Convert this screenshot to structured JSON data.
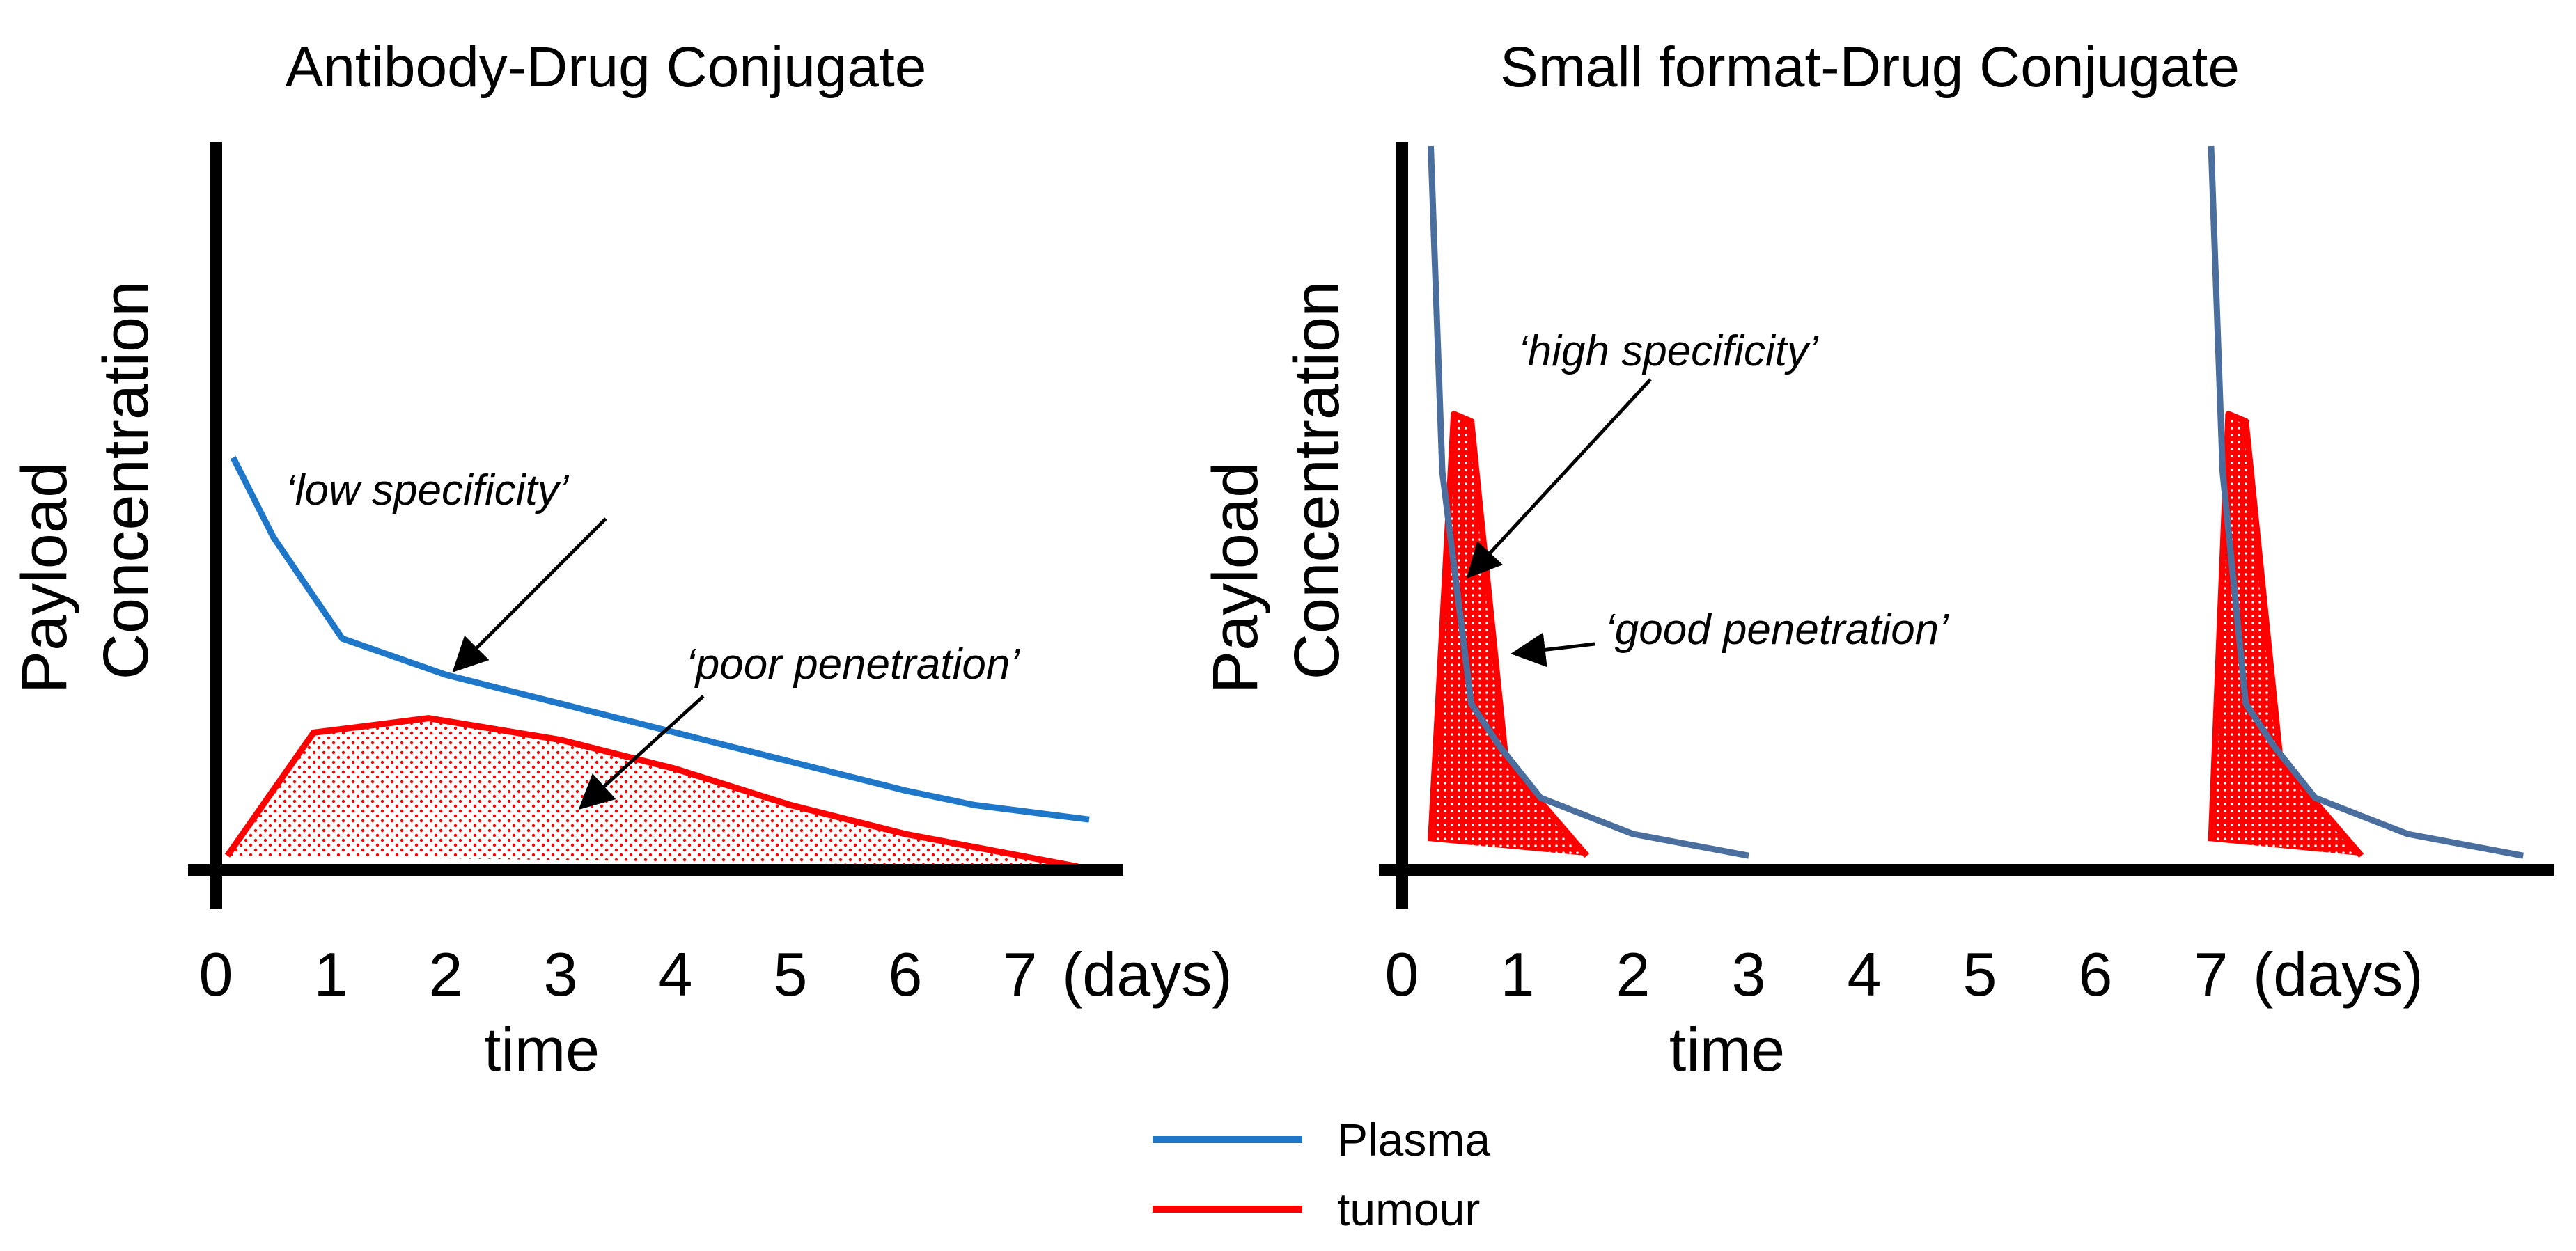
{
  "legend": {
    "items": [
      {
        "label": "Plasma",
        "color": "#1f77c9"
      },
      {
        "label": "tumour",
        "color": "#ff0000"
      }
    ]
  },
  "chart_data": [
    {
      "type": "line",
      "title": "Antibody-Drug Conjugate",
      "xlabel": "time",
      "ylabel": [
        "Payload",
        "Concentration"
      ],
      "x_unit": "(days)",
      "x_ticks": [
        "0",
        "1",
        "2",
        "3",
        "4",
        "5",
        "6",
        "7"
      ],
      "xlim": [
        0,
        7.6
      ],
      "ylim": [
        0,
        1
      ],
      "series": [
        {
          "name": "Plasma",
          "color": "#1f77c9",
          "x": [
            0.15,
            0.5,
            1.1,
            2.0,
            3.0,
            4.0,
            5.0,
            6.0,
            6.6,
            7.6
          ],
          "y": [
            0.57,
            0.46,
            0.32,
            0.27,
            0.23,
            0.19,
            0.15,
            0.11,
            0.09,
            0.07
          ]
        },
        {
          "name": "tumour",
          "color": "#ff0000",
          "fill": "dotted",
          "x": [
            0.1,
            0.85,
            1.85,
            3.0,
            4.0,
            5.0,
            6.0,
            7.5
          ],
          "y": [
            0.02,
            0.19,
            0.21,
            0.18,
            0.14,
            0.09,
            0.05,
            0.005
          ]
        }
      ],
      "annotations": [
        {
          "text": "‘low specificity’",
          "x": 2.1,
          "y": 0.28
        },
        {
          "text": "‘poor penetration’",
          "x": 3.2,
          "y": 0.09
        }
      ]
    },
    {
      "type": "line",
      "title": "Small format-Drug Conjugate",
      "xlabel": "time",
      "ylabel": [
        "Payload",
        "Concentration"
      ],
      "x_unit": "(days)",
      "x_ticks": [
        "0",
        "1",
        "2",
        "3",
        "4",
        "5",
        "6",
        "7"
      ],
      "xlim": [
        0,
        10
      ],
      "ylim": [
        0,
        1
      ],
      "series": [
        {
          "name": "Plasma",
          "color": "#4a6f9e",
          "segments": [
            {
              "x": [
                0.25,
                0.35,
                0.6,
                0.85,
                1.2,
                2.0,
                3.0
              ],
              "y": [
                1.0,
                0.55,
                0.23,
                0.17,
                0.1,
                0.05,
                0.02
              ]
            },
            {
              "x": [
                7.0,
                7.1,
                7.3,
                7.55,
                7.9,
                8.7,
                9.7
              ],
              "y": [
                1.0,
                0.55,
                0.23,
                0.17,
                0.1,
                0.05,
                0.02
              ]
            }
          ]
        },
        {
          "name": "tumour",
          "color": "#ff0000",
          "fill": "dotted",
          "segments": [
            {
              "x": [
                0.25,
                0.45,
                0.6,
                0.9,
                1.6
              ],
              "y": [
                0.04,
                0.63,
                0.62,
                0.15,
                0.02
              ]
            },
            {
              "x": [
                7.0,
                7.15,
                7.3,
                7.6,
                8.3
              ],
              "y": [
                0.04,
                0.63,
                0.62,
                0.15,
                0.02
              ]
            }
          ]
        }
      ],
      "annotations": [
        {
          "text": "‘high specificity’",
          "x": 0.6,
          "y": 0.41
        },
        {
          "text": "‘good penetration’",
          "x": 1.0,
          "y": 0.3
        }
      ]
    }
  ]
}
